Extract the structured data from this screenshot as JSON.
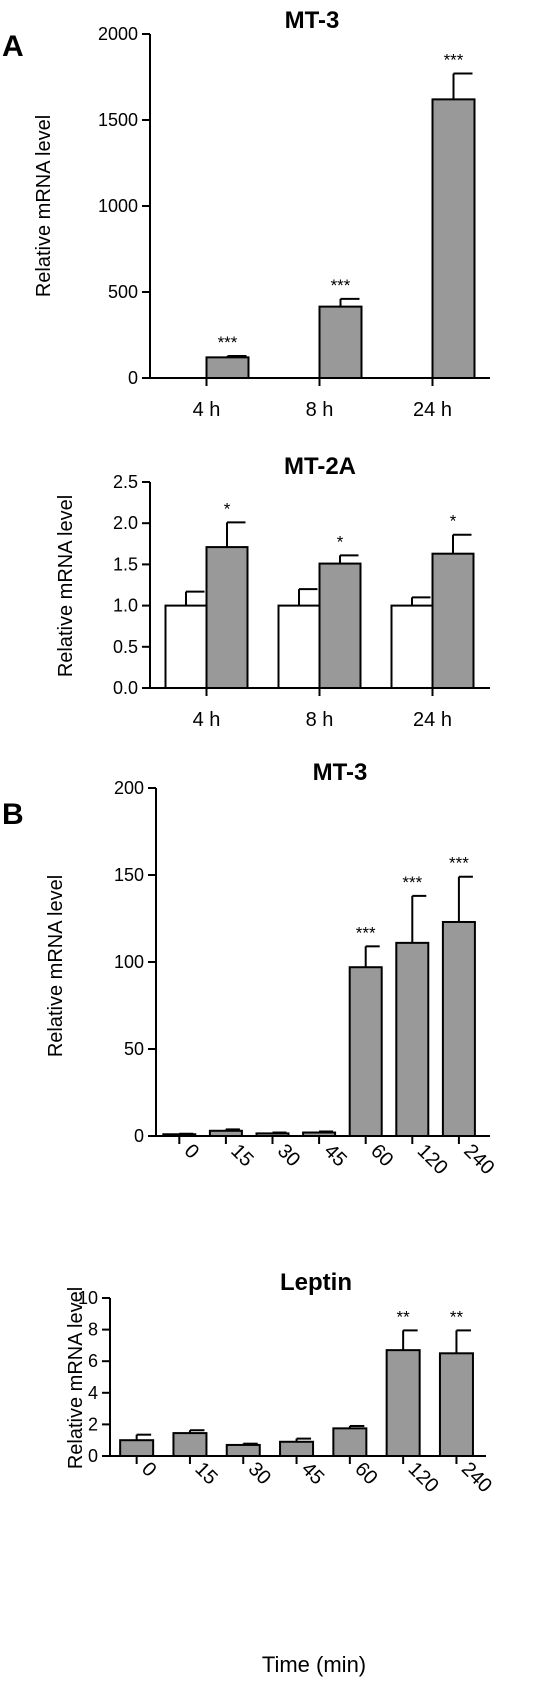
{
  "panel_labels": {
    "a": "A",
    "b": "B"
  },
  "colors": {
    "treated": "#999999",
    "control": "#ffffff",
    "stroke": "#000000"
  },
  "chart_data": [
    {
      "type": "bar",
      "title": "MT-3",
      "ylabel": "Relative mRNA level",
      "xlabel": "",
      "ylim": [
        0,
        2000
      ],
      "yticks": [
        "0",
        "500",
        "1000",
        "1500",
        "2000"
      ],
      "categories": [
        "4 h",
        "8 h",
        "24 h"
      ],
      "series": [
        {
          "values": [
            0,
            0,
            0
          ],
          "errors": [
            0,
            0,
            0
          ]
        },
        {
          "values": [
            120,
            415,
            1620
          ],
          "errors": [
            8,
            45,
            150
          ]
        }
      ],
      "annotations": [
        "***",
        "***",
        "***"
      ]
    },
    {
      "type": "bar",
      "title": "MT-2A",
      "ylabel": "Relative mRNA level",
      "xlabel": "",
      "ylim": [
        0,
        2.5
      ],
      "yticks": [
        "0.0",
        "0.5",
        "1.0",
        "1.5",
        "2.0",
        "2.5"
      ],
      "categories": [
        "4 h",
        "8 h",
        "24 h"
      ],
      "series": [
        {
          "values": [
            1.0,
            1.0,
            1.0
          ],
          "errors": [
            0.17,
            0.2,
            0.1
          ]
        },
        {
          "values": [
            1.71,
            1.51,
            1.63
          ],
          "errors": [
            0.3,
            0.1,
            0.23
          ]
        }
      ],
      "annotations": [
        "*",
        "*",
        "*"
      ]
    },
    {
      "type": "bar",
      "title": "MT-3",
      "ylabel": "Relative mRNA level",
      "xlabel": "",
      "ylim": [
        0,
        200
      ],
      "yticks": [
        "0",
        "50",
        "100",
        "150",
        "200"
      ],
      "categories": [
        "0",
        "15",
        "30",
        "45",
        "60",
        "120",
        "240"
      ],
      "series": [
        {
          "values": [
            1,
            3,
            1.5,
            2,
            97,
            111,
            123
          ],
          "errors": [
            0.3,
            0.8,
            0.5,
            0.6,
            12,
            27,
            26
          ]
        }
      ],
      "annotations": [
        "",
        "",
        "",
        "",
        "***",
        "***",
        "***"
      ]
    },
    {
      "type": "bar",
      "title": "Leptin",
      "ylabel": "Relative mRNA level",
      "xlabel": "Time (min)",
      "ylim": [
        0,
        10
      ],
      "yticks": [
        "0",
        "2",
        "4",
        "6",
        "8",
        "10"
      ],
      "categories": [
        "0",
        "15",
        "30",
        "45",
        "60",
        "120",
        "240"
      ],
      "series": [
        {
          "values": [
            1.0,
            1.45,
            0.7,
            0.9,
            1.75,
            6.7,
            6.5
          ],
          "errors": [
            0.35,
            0.18,
            0.08,
            0.2,
            0.15,
            1.25,
            1.45
          ]
        }
      ],
      "annotations": [
        "",
        "",
        "",
        "",
        "",
        "**",
        "**"
      ]
    }
  ]
}
